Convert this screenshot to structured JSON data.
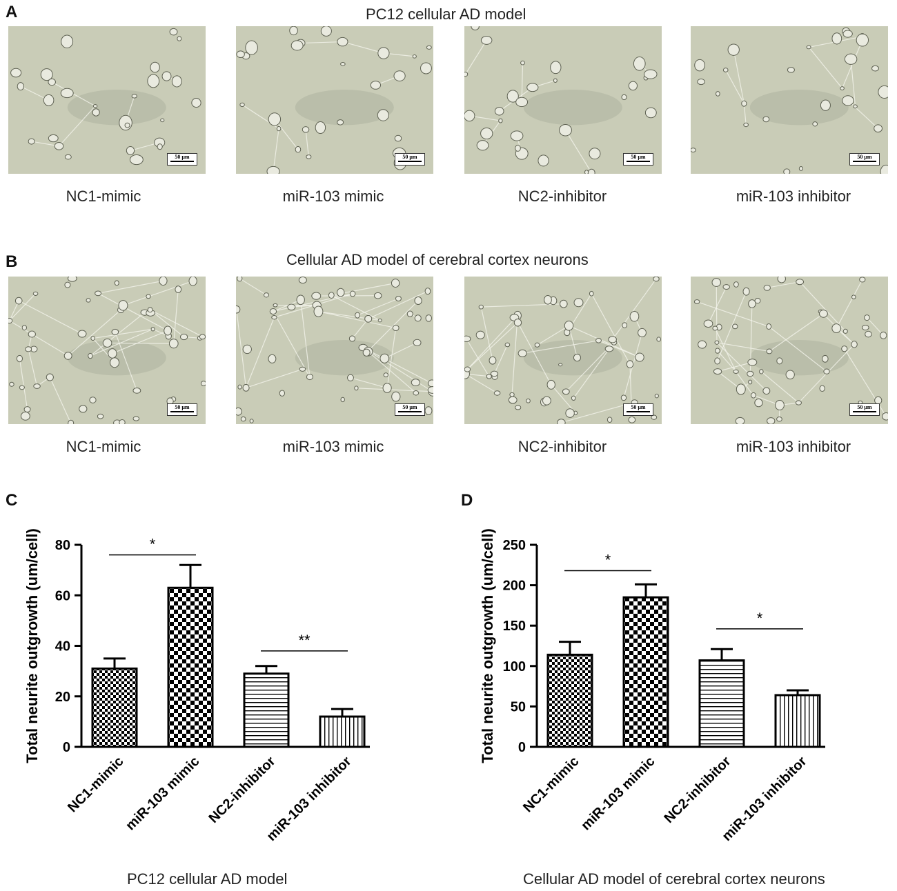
{
  "panels": {
    "a": {
      "letter": "A",
      "title": "PC12 cellular AD model",
      "captions": [
        "NC1-mimic",
        "miR-103 mimic",
        "NC2-inhibitor",
        "miR-103 inhibitor"
      ]
    },
    "b": {
      "letter": "B",
      "title": "Cellular AD model of cerebral cortex neurons",
      "captions": [
        "NC1-mimic",
        "miR-103 mimic",
        "NC2-inhibitor",
        "miR-103 inhibitor"
      ]
    },
    "c": {
      "letter": "C",
      "caption": "PC12 cellular AD model"
    },
    "d": {
      "letter": "D",
      "caption": "Cellular AD model of cerebral cortex neurons"
    }
  },
  "scale_label": "50 μm",
  "colors": {
    "micrograph_bg": "#c9ccb7",
    "bar_stroke": "#000000",
    "bar_fill": "#ffffff"
  },
  "chart_data": [
    {
      "type": "bar",
      "panel": "C",
      "title": "",
      "ylabel": "Total neurite outgrowth (um/cell)",
      "xlabel": "",
      "categories": [
        "NC1-mimic",
        "miR-103 mimic",
        "NC2-inhibitor",
        "miR-103 inhibitor"
      ],
      "values": [
        31,
        63,
        29,
        12
      ],
      "errors": [
        4,
        9,
        3,
        3
      ],
      "patterns": [
        "checker-small",
        "checker-large",
        "horizontal-lines",
        "vertical-lines"
      ],
      "ylim": [
        0,
        80
      ],
      "yticks": [
        0,
        20,
        40,
        60,
        80
      ],
      "significance": [
        {
          "from": 0,
          "to": 1,
          "label": "*",
          "y": 76
        },
        {
          "from": 2,
          "to": 3,
          "label": "**",
          "y": 38
        }
      ]
    },
    {
      "type": "bar",
      "panel": "D",
      "title": "",
      "ylabel": "Total neurite outgrowth (um/cell)",
      "xlabel": "",
      "categories": [
        "NC1-mimic",
        "miR-103 mimic",
        "NC2-inhibitor",
        "miR-103 inhibitor"
      ],
      "values": [
        114,
        185,
        107,
        64
      ],
      "errors": [
        16,
        16,
        14,
        6
      ],
      "patterns": [
        "checker-small",
        "checker-large",
        "horizontal-lines",
        "vertical-lines"
      ],
      "ylim": [
        0,
        250
      ],
      "yticks": [
        0,
        50,
        100,
        150,
        200,
        250
      ],
      "significance": [
        {
          "from": 0,
          "to": 1,
          "label": "*",
          "y": 218
        },
        {
          "from": 2,
          "to": 3,
          "label": "*",
          "y": 146
        }
      ]
    }
  ]
}
